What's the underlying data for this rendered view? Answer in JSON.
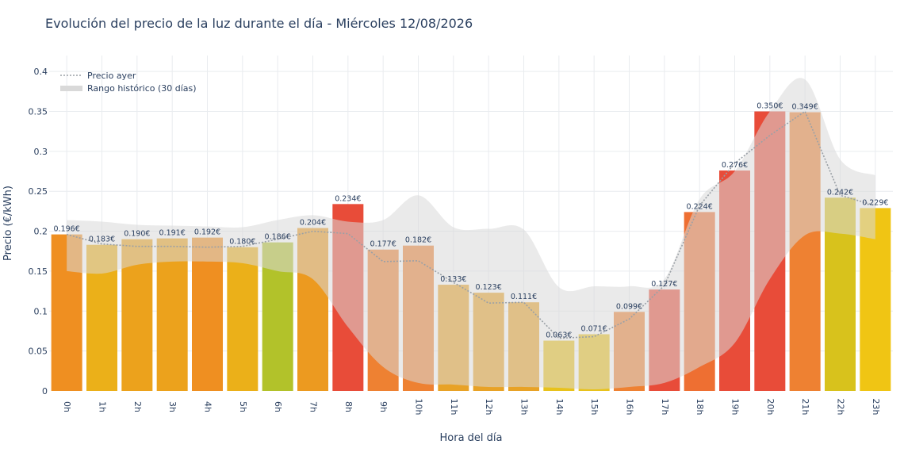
{
  "chart_data": {
    "type": "bar",
    "title": "Evolución del precio de la luz durante el día - Miércoles 12/08/2026",
    "xlabel": "Hora del día",
    "ylabel": "Precio (€/kWh)",
    "ylim": [
      0,
      0.42
    ],
    "yticks": [
      {
        "value": 0,
        "label": "0"
      },
      {
        "value": 0.05,
        "label": "0.05"
      },
      {
        "value": 0.1,
        "label": "0.1"
      },
      {
        "value": 0.15,
        "label": "0.15"
      },
      {
        "value": 0.2,
        "label": "0.2"
      },
      {
        "value": 0.25,
        "label": "0.25"
      },
      {
        "value": 0.3,
        "label": "0.3"
      },
      {
        "value": 0.35,
        "label": "0.35"
      },
      {
        "value": 0.4,
        "label": "0.4"
      }
    ],
    "grid": true,
    "legend_position": "top-left",
    "categories": [
      "0h",
      "1h",
      "2h",
      "3h",
      "4h",
      "5h",
      "6h",
      "7h",
      "8h",
      "9h",
      "10h",
      "11h",
      "12h",
      "13h",
      "14h",
      "15h",
      "16h",
      "17h",
      "18h",
      "19h",
      "20h",
      "21h",
      "22h",
      "23h"
    ],
    "series": [
      {
        "type": "bar",
        "values": [
          0.196,
          0.183,
          0.19,
          0.191,
          0.192,
          0.18,
          0.186,
          0.204,
          0.234,
          0.177,
          0.182,
          0.133,
          0.123,
          0.111,
          0.063,
          0.071,
          0.099,
          0.127,
          0.224,
          0.276,
          0.35,
          0.349,
          0.242,
          0.229
        ],
        "labels": [
          "0.196€",
          "0.183€",
          "0.190€",
          "0.191€",
          "0.192€",
          "0.180€",
          "0.186€",
          "0.204€",
          "0.234€",
          "0.177€",
          "0.182€",
          "0.133€",
          "0.123€",
          "0.111€",
          "0.063€",
          "0.071€",
          "0.099€",
          "0.127€",
          "0.224€",
          "0.276€",
          "0.350€",
          "0.349€",
          "0.242€",
          "0.229€"
        ],
        "colors": [
          "#ef8f21",
          "#ebb019",
          "#eca21c",
          "#eca21c",
          "#ef8f21",
          "#ebb019",
          "#b2c22a",
          "#ec9a20",
          "#e84c39",
          "#ee8132",
          "#ee8132",
          "#e8a226",
          "#e8a226",
          "#e8a226",
          "#e8c21c",
          "#e8c21c",
          "#ee8132",
          "#e84c39",
          "#ee6f32",
          "#e84c39",
          "#e84c39",
          "#ee8132",
          "#d8c21c",
          "#f0c514"
        ]
      },
      {
        "name": "Precio ayer",
        "type": "line",
        "color": "#9aa0a6",
        "values": [
          0.196,
          0.184,
          0.181,
          0.181,
          0.18,
          0.181,
          0.19,
          0.2,
          0.197,
          0.162,
          0.163,
          0.136,
          0.11,
          0.111,
          0.066,
          0.068,
          0.09,
          0.132,
          0.232,
          0.285,
          0.32,
          0.35,
          0.245,
          0.232
        ]
      },
      {
        "name": "Rango histórico (30 días)",
        "type": "area_band",
        "color": "#d9d9d9",
        "upper": [
          0.214,
          0.212,
          0.208,
          0.207,
          0.206,
          0.205,
          0.214,
          0.22,
          0.212,
          0.214,
          0.245,
          0.205,
          0.203,
          0.202,
          0.13,
          0.131,
          0.131,
          0.14,
          0.24,
          0.275,
          0.35,
          0.39,
          0.29,
          0.27
        ],
        "lower": [
          0.15,
          0.147,
          0.158,
          0.162,
          0.162,
          0.16,
          0.15,
          0.14,
          0.08,
          0.03,
          0.01,
          0.008,
          0.005,
          0.005,
          0.004,
          0.002,
          0.005,
          0.01,
          0.03,
          0.06,
          0.14,
          0.195,
          0.197,
          0.19
        ]
      }
    ]
  }
}
